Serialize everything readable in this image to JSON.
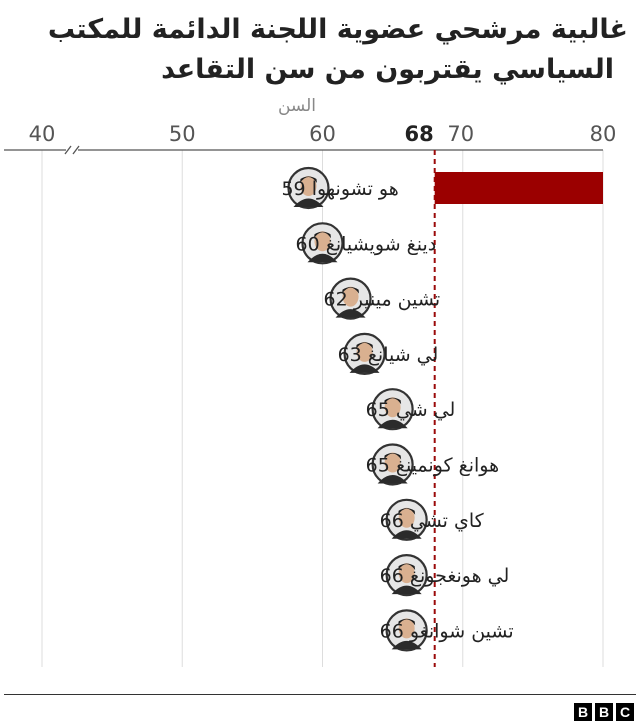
{
  "title_line1": "غالبية مرشحي عضوية اللجنة الدائمة للمكتب",
  "title_line2": "السياسي يقتربون من سن التقاعد",
  "brand": [
    "B",
    "B",
    "C"
  ],
  "chart_data": {
    "type": "bar",
    "orientation": "horizontal",
    "xlabel": "السن",
    "xlim": [
      40,
      80
    ],
    "axis_break": true,
    "ticks": [
      40,
      50,
      60,
      70,
      80
    ],
    "reference_line": {
      "value": 68,
      "label": "68",
      "style": "dashed",
      "color": "#9b0a0a"
    },
    "categories": [
      "هو تشونهوا 59",
      "دينغ شويشيانغ 60",
      "تشين مينير 62",
      "لي شيانغ 63",
      "لي شي 65",
      "هوانغ كونمينغ 65",
      "كاي تشي 66",
      "لي هونغجونغ 66",
      "تشين شوانغو 66"
    ],
    "values": [
      59,
      60,
      62,
      63,
      65,
      65,
      66,
      66,
      66
    ],
    "highlight": {
      "row": 0,
      "from": 68,
      "to": 80,
      "color": "#9b0000"
    },
    "grid": true,
    "avatar_icons": [
      "person-portrait-icon",
      "person-portrait-icon",
      "person-portrait-icon",
      "person-portrait-icon",
      "person-portrait-icon",
      "person-portrait-icon",
      "person-portrait-icon",
      "person-portrait-icon",
      "person-portrait-icon"
    ]
  }
}
